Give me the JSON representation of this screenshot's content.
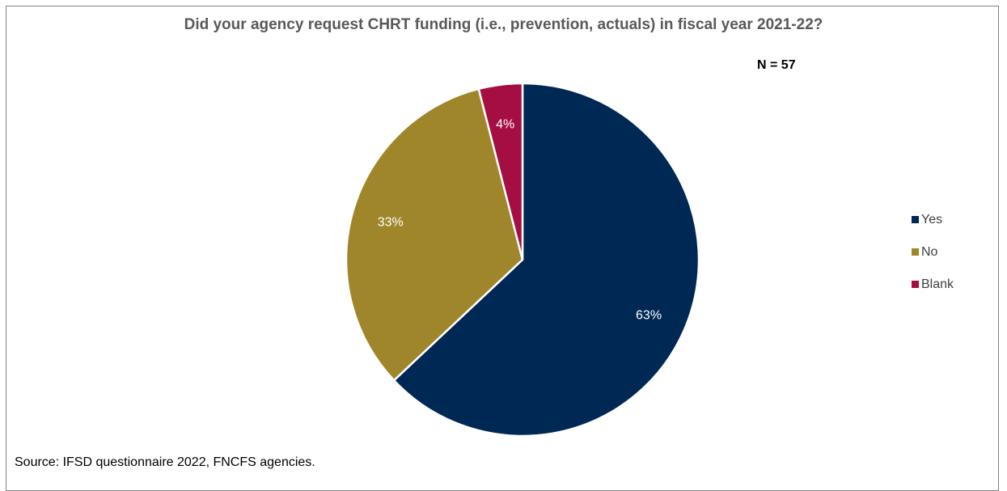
{
  "chart_data": {
    "type": "pie",
    "title": "Did your agency request CHRT funding (i.e., prevention, actuals) in fiscal year 2021-22?",
    "annotation": "N = 57",
    "slices": [
      {
        "label": "Yes",
        "value": 63,
        "display": "63%",
        "color": "#002855"
      },
      {
        "label": "No",
        "value": 33,
        "display": "33%",
        "color": "#A0862B"
      },
      {
        "label": "Blank",
        "value": 4,
        "display": "4%",
        "color": "#A50E42"
      }
    ],
    "legend_position": "right",
    "source": "Source: IFSD questionnaire 2022, FNCFS agencies."
  }
}
